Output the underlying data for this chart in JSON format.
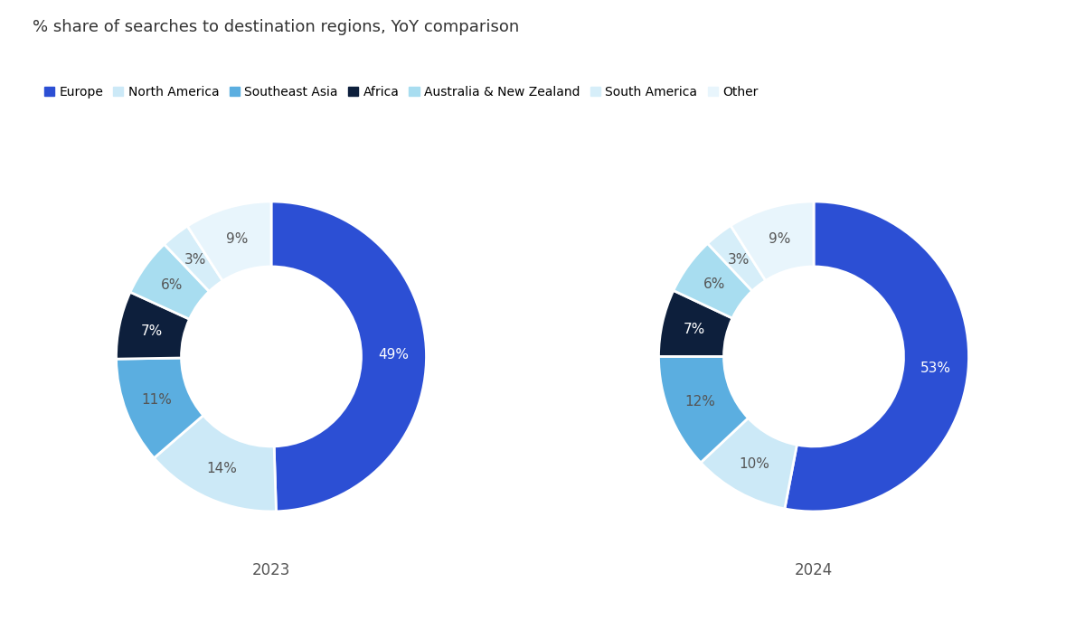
{
  "title": "% share of searches to destination regions, YoY comparison",
  "title_color": "#333333",
  "title_fontsize": 13,
  "background_color": "#ffffff",
  "legend_labels": [
    "Europe",
    "North America",
    "Southeast Asia",
    "Africa",
    "Australia & New Zealand",
    "South America",
    "Other"
  ],
  "colors": [
    "#2c4fd4",
    "#cce9f7",
    "#5baee0",
    "#0d1f3c",
    "#a8ddf0",
    "#d6eef9",
    "#e8f5fc"
  ],
  "data_2023": {
    "values": [
      49,
      14,
      11,
      7,
      6,
      3,
      9
    ],
    "labels": [
      "49%",
      "14%",
      "11%",
      "7%",
      "6%",
      "3%",
      "9%"
    ],
    "year": "2023"
  },
  "data_2024": {
    "values": [
      53,
      10,
      12,
      7,
      6,
      3,
      9
    ],
    "labels": [
      "53%",
      "10%",
      "12%",
      "7%",
      "6%",
      "3%",
      "9%"
    ],
    "year": "2024"
  },
  "startangle": 90,
  "donut_width": 0.42,
  "label_fontsize": 11,
  "year_fontsize": 12,
  "legend_fontsize": 10,
  "white_label_indices": [
    0,
    3
  ],
  "dark_label_color": "#555555",
  "white_label_color": "#ffffff"
}
